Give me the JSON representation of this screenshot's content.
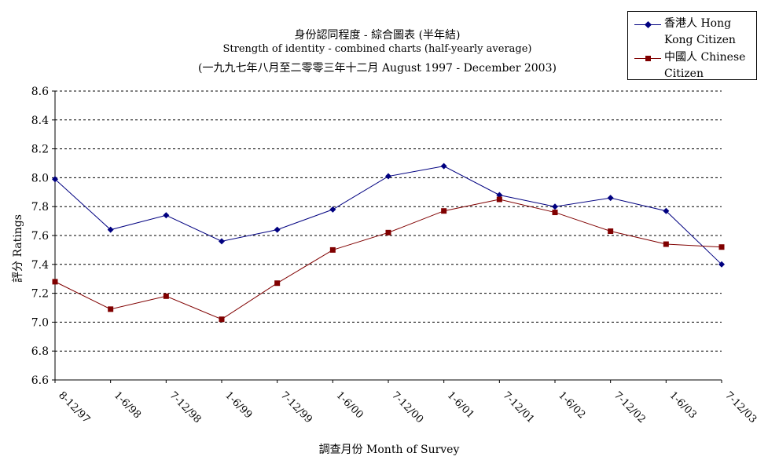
{
  "chart_data": {
    "type": "line",
    "title_lines": [
      "身份認同程度 - 綜合圖表 (半年結)",
      "Strength of identity - combined charts (half-yearly average)",
      "(一九九七年八月至二零零三年十二月 August 1997 - December 2003)"
    ],
    "xlabel": "調查月份 Month of Survey",
    "ylabel": "評分 Ratings",
    "categories": [
      "8-12/97",
      "1-6/98",
      "7-12/98",
      "1-6/99",
      "7-12/99",
      "1-6/00",
      "7-12/00",
      "1-6/01",
      "7-12/01",
      "1-6/02",
      "7-12/02",
      "1-6/03",
      "7-12/03"
    ],
    "ylim": [
      6.6,
      8.6
    ],
    "yticks": [
      "6.6",
      "6.8",
      "7.0",
      "7.2",
      "7.4",
      "7.6",
      "7.8",
      "8.0",
      "8.2",
      "8.4",
      "8.6"
    ],
    "grid": "horizontal-dashed",
    "legend_position": "top-right",
    "series": [
      {
        "name": "香港人 Hong Kong Citizen",
        "color": "#000080",
        "marker": "diamond",
        "values": [
          7.99,
          7.64,
          7.74,
          7.56,
          7.64,
          7.78,
          8.01,
          8.08,
          7.88,
          7.8,
          7.86,
          7.77,
          7.4
        ]
      },
      {
        "name": "中國人 Chinese Citizen",
        "color": "#800000",
        "marker": "square",
        "values": [
          7.28,
          7.09,
          7.18,
          7.02,
          7.27,
          7.5,
          7.62,
          7.77,
          7.85,
          7.76,
          7.63,
          7.54,
          7.52
        ]
      }
    ]
  }
}
